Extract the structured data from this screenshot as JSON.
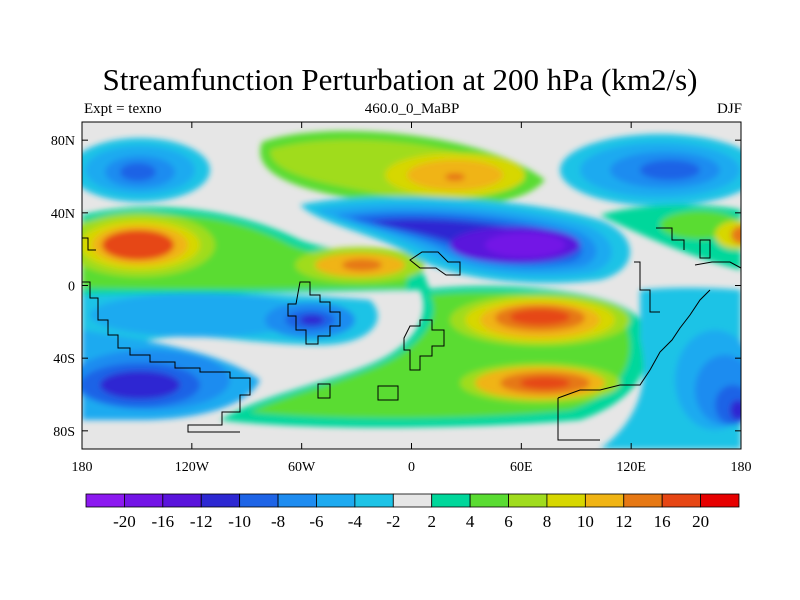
{
  "title": "Streamfunction Perturbation at 200 hPa (km2/s)",
  "left_label": "Expt = texno",
  "center_label": "460.0_0_MaBP",
  "right_label": "DJF",
  "map": {
    "lon_range": [
      -180,
      180
    ],
    "lat_range": [
      -90,
      90
    ],
    "lon_ticks": [
      {
        "value": -180,
        "label": "180"
      },
      {
        "value": -120,
        "label": "120W"
      },
      {
        "value": -60,
        "label": "60W"
      },
      {
        "value": 0,
        "label": "0"
      },
      {
        "value": 60,
        "label": "60E"
      },
      {
        "value": 120,
        "label": "120E"
      },
      {
        "value": 180,
        "label": "180"
      }
    ],
    "lat_ticks": [
      {
        "value": 80,
        "label": "80N"
      },
      {
        "value": 40,
        "label": "40N"
      },
      {
        "value": 0,
        "label": "0"
      },
      {
        "value": -40,
        "label": "40S"
      },
      {
        "value": -80,
        "label": "80S"
      }
    ]
  },
  "colorbar": {
    "colors": [
      "#8c19f0",
      "#7314e6",
      "#5a14dc",
      "#2d28d2",
      "#1e64e6",
      "#1e8cf0",
      "#1eaaf0",
      "#1ec3e6",
      "#e6e6e6",
      "#00d79b",
      "#5adc32",
      "#a0dc1e",
      "#d7d700",
      "#f0b414",
      "#e67814",
      "#e64614",
      "#e60000"
    ],
    "labels": [
      "-20",
      "-16",
      "-12",
      "-10",
      "-8",
      "-6",
      "-4",
      "-2",
      "2",
      "4",
      "6",
      "8",
      "10",
      "12",
      "16",
      "20"
    ]
  }
}
